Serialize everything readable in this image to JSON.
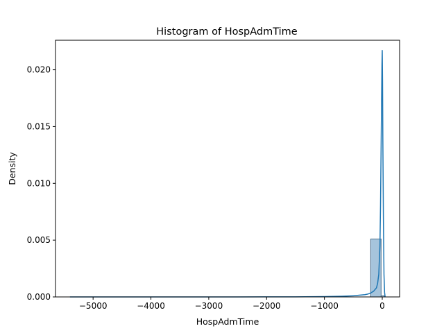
{
  "chart_data": {
    "type": "bar",
    "title": "Histogram of HospAdmTime",
    "xlabel": "HospAdmTime",
    "ylabel": "Density",
    "xlim": [
      -5650,
      300
    ],
    "ylim": [
      0,
      0.0226
    ],
    "x_ticks": [
      {
        "value": -5000,
        "label": "−5000"
      },
      {
        "value": -4000,
        "label": "−4000"
      },
      {
        "value": -3000,
        "label": "−3000"
      },
      {
        "value": -2000,
        "label": "−2000"
      },
      {
        "value": -1000,
        "label": "−1000"
      },
      {
        "value": 0,
        "label": "0"
      }
    ],
    "y_ticks": [
      {
        "value": 0.0,
        "label": "0.000"
      },
      {
        "value": 0.005,
        "label": "0.005"
      },
      {
        "value": 0.01,
        "label": "0.010"
      },
      {
        "value": 0.015,
        "label": "0.015"
      },
      {
        "value": 0.02,
        "label": "0.020"
      }
    ],
    "bars": [
      {
        "x0": -200,
        "x1": -20,
        "value": 0.0051
      },
      {
        "x0": -20,
        "x1": 40,
        "value": 0.0001
      }
    ],
    "kde": {
      "x": [
        -5400,
        -4500,
        -3500,
        -2500,
        -1500,
        -1000,
        -700,
        -500,
        -400,
        -300,
        -250,
        -200,
        -150,
        -100,
        -80,
        -60,
        -40,
        -30,
        -20,
        -10,
        -5,
        0,
        5,
        10,
        20,
        30,
        40,
        50
      ],
      "y": [
        0.0,
        0.0,
        0.0,
        0.0,
        1e-05,
        3e-05,
        6e-05,
        0.0001,
        0.00015,
        0.0002,
        0.00025,
        0.00035,
        0.0005,
        0.0008,
        0.0012,
        0.002,
        0.0045,
        0.008,
        0.013,
        0.018,
        0.0205,
        0.0217,
        0.019,
        0.014,
        0.007,
        0.002,
        0.0004,
        0.0
      ]
    },
    "colors": {
      "bar_fill": "#a6c4dc",
      "bar_edge": "#4d6f8c",
      "line": "#1f77b4"
    },
    "grid": false,
    "legend": "none"
  }
}
